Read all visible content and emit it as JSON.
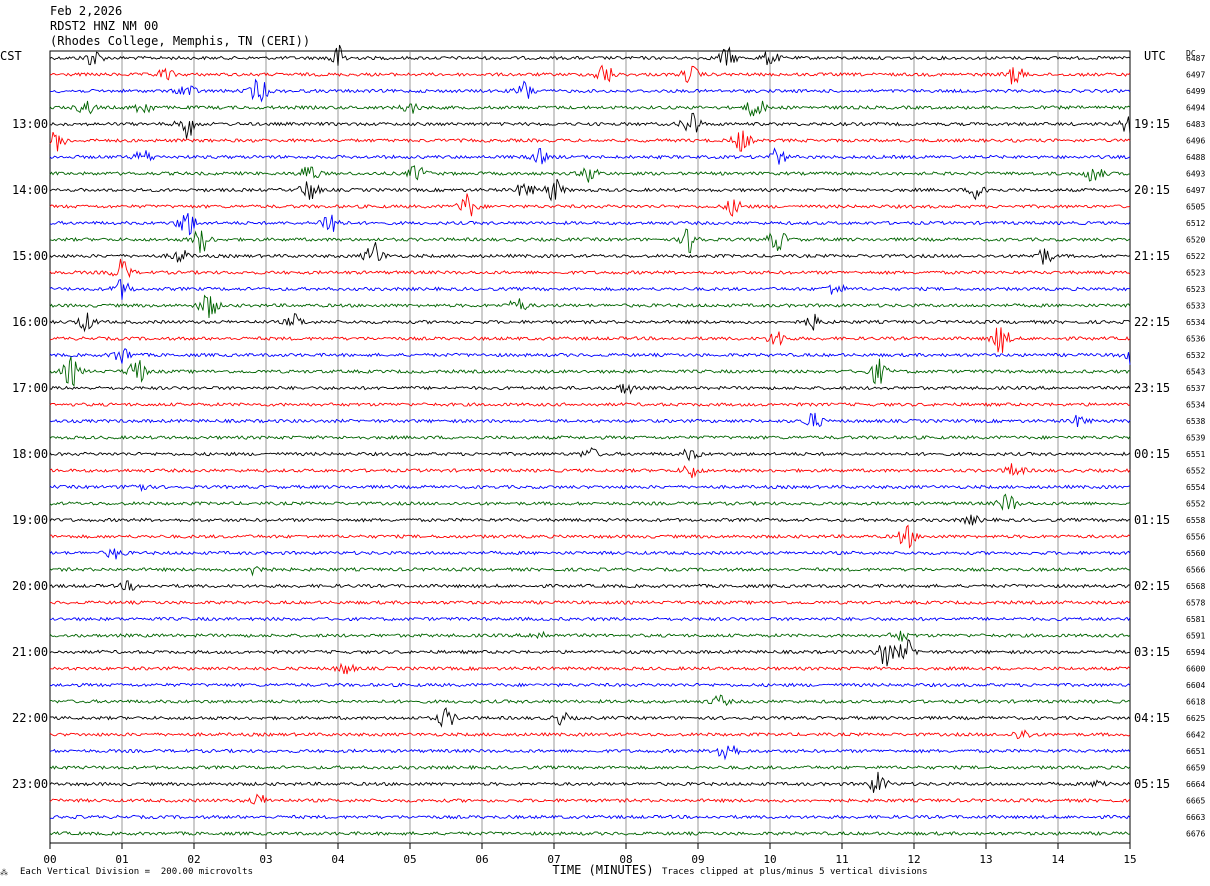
{
  "header": {
    "date": "Feb 2,2026",
    "station": "RDST2 HNZ NM 00",
    "location": "(Rhodes College, Memphis, TN (CERI))"
  },
  "left_tz": "CST",
  "right_tz": "UTC",
  "dc_label": "DC",
  "footer": {
    "division_note": "Each Vertical Division =  200.00 microvolts",
    "clip_note": "Traces clipped at plus/minus 5 vertical divisions",
    "corner_mark": "⁂"
  },
  "colors": {
    "cycle": [
      "#000000",
      "#ff0000",
      "#0000ff",
      "#006400"
    ],
    "grid": "#808080"
  },
  "chart_data": {
    "type": "line",
    "title": "",
    "xlabel": "TIME (MINUTES)",
    "ylabel": "",
    "xlim": [
      0,
      15
    ],
    "x_ticks": [
      "00",
      "01",
      "02",
      "03",
      "04",
      "05",
      "06",
      "07",
      "08",
      "09",
      "10",
      "11",
      "12",
      "13",
      "14",
      "15"
    ],
    "left_hour_labels": [
      "13:00",
      "14:00",
      "15:00",
      "16:00",
      "17:00",
      "18:00",
      "19:00",
      "20:00",
      "21:00",
      "22:00",
      "23:00"
    ],
    "right_hour_labels": [
      "19:15",
      "20:15",
      "21:15",
      "22:15",
      "23:15",
      "00:15",
      "01:15",
      "02:15",
      "03:15",
      "04:15",
      "05:15"
    ],
    "dc_offsets": [
      6487,
      6497,
      6499,
      6494,
      6483,
      6496,
      6488,
      6493,
      6497,
      6505,
      6512,
      6520,
      6522,
      6523,
      6523,
      6533,
      6534,
      6536,
      6532,
      6543,
      6537,
      6534,
      6538,
      6539,
      6551,
      6552,
      6554,
      6552,
      6558,
      6556,
      6560,
      6566,
      6568,
      6578,
      6581,
      6591,
      6594,
      6600,
      6604,
      6618,
      6625,
      6642,
      6651,
      6659,
      6664,
      6665,
      6663,
      6676
    ],
    "trace_count": 48,
    "events": [
      {
        "trace": 0,
        "minute": 0.6,
        "amp": 0.6
      },
      {
        "trace": 0,
        "minute": 4.0,
        "amp": 0.9
      },
      {
        "trace": 0,
        "minute": 9.4,
        "amp": 0.7
      },
      {
        "trace": 0,
        "minute": 10.0,
        "amp": 0.5
      },
      {
        "trace": 1,
        "minute": 1.6,
        "amp": 0.4
      },
      {
        "trace": 1,
        "minute": 7.7,
        "amp": 0.8
      },
      {
        "trace": 1,
        "minute": 8.9,
        "amp": 0.6
      },
      {
        "trace": 1,
        "minute": 13.4,
        "amp": 0.7
      },
      {
        "trace": 2,
        "minute": 1.9,
        "amp": 0.5
      },
      {
        "trace": 2,
        "minute": 2.9,
        "amp": 0.9
      },
      {
        "trace": 2,
        "minute": 6.6,
        "amp": 0.7
      },
      {
        "trace": 3,
        "minute": 0.5,
        "amp": 0.5
      },
      {
        "trace": 3,
        "minute": 1.3,
        "amp": 0.5
      },
      {
        "trace": 3,
        "minute": 5.0,
        "amp": 0.4
      },
      {
        "trace": 3,
        "minute": 9.8,
        "amp": 0.8
      },
      {
        "trace": 4,
        "minute": 1.9,
        "amp": 1.0
      },
      {
        "trace": 4,
        "minute": 8.9,
        "amp": 1.0
      },
      {
        "trace": 4,
        "minute": 15.0,
        "amp": 0.8
      },
      {
        "trace": 5,
        "minute": 0.1,
        "amp": 0.7
      },
      {
        "trace": 5,
        "minute": 9.6,
        "amp": 0.8
      },
      {
        "trace": 6,
        "minute": 1.3,
        "amp": 0.5
      },
      {
        "trace": 6,
        "minute": 6.8,
        "amp": 0.5
      },
      {
        "trace": 6,
        "minute": 10.1,
        "amp": 0.6
      },
      {
        "trace": 7,
        "minute": 3.6,
        "amp": 0.7
      },
      {
        "trace": 7,
        "minute": 5.1,
        "amp": 0.6
      },
      {
        "trace": 7,
        "minute": 7.5,
        "amp": 0.6
      },
      {
        "trace": 7,
        "minute": 14.5,
        "amp": 0.7
      },
      {
        "trace": 8,
        "minute": 3.6,
        "amp": 0.8
      },
      {
        "trace": 8,
        "minute": 6.6,
        "amp": 0.6
      },
      {
        "trace": 8,
        "minute": 7.0,
        "amp": 0.8
      },
      {
        "trace": 8,
        "minute": 12.9,
        "amp": 0.7
      },
      {
        "trace": 9,
        "minute": 5.8,
        "amp": 0.9
      },
      {
        "trace": 9,
        "minute": 9.5,
        "amp": 0.6
      },
      {
        "trace": 10,
        "minute": 1.9,
        "amp": 1.0
      },
      {
        "trace": 10,
        "minute": 3.9,
        "amp": 1.0
      },
      {
        "trace": 11,
        "minute": 2.1,
        "amp": 0.9
      },
      {
        "trace": 11,
        "minute": 8.9,
        "amp": 1.0
      },
      {
        "trace": 11,
        "minute": 10.1,
        "amp": 0.8
      },
      {
        "trace": 12,
        "minute": 1.8,
        "amp": 0.5
      },
      {
        "trace": 12,
        "minute": 4.5,
        "amp": 1.0
      },
      {
        "trace": 12,
        "minute": 13.8,
        "amp": 0.6
      },
      {
        "trace": 13,
        "minute": 1.0,
        "amp": 0.9
      },
      {
        "trace": 14,
        "minute": 1.0,
        "amp": 0.7
      },
      {
        "trace": 14,
        "minute": 10.9,
        "amp": 0.5
      },
      {
        "trace": 15,
        "minute": 2.2,
        "amp": 1.0
      },
      {
        "trace": 15,
        "minute": 6.5,
        "amp": 0.5
      },
      {
        "trace": 16,
        "minute": 0.5,
        "amp": 0.6
      },
      {
        "trace": 16,
        "minute": 3.4,
        "amp": 0.5
      },
      {
        "trace": 16,
        "minute": 10.6,
        "amp": 0.5
      },
      {
        "trace": 17,
        "minute": 10.1,
        "amp": 0.6
      },
      {
        "trace": 17,
        "minute": 13.2,
        "amp": 1.0
      },
      {
        "trace": 18,
        "minute": 1.0,
        "amp": 0.6
      },
      {
        "trace": 18,
        "minute": 15.0,
        "amp": 0.6
      },
      {
        "trace": 19,
        "minute": 0.3,
        "amp": 1.0
      },
      {
        "trace": 19,
        "minute": 1.2,
        "amp": 1.0
      },
      {
        "trace": 19,
        "minute": 11.5,
        "amp": 0.9
      },
      {
        "trace": 20,
        "minute": 8.0,
        "amp": 0.4
      },
      {
        "trace": 22,
        "minute": 10.6,
        "amp": 0.6
      },
      {
        "trace": 22,
        "minute": 14.3,
        "amp": 0.4
      },
      {
        "trace": 24,
        "minute": 7.5,
        "amp": 0.4
      },
      {
        "trace": 24,
        "minute": 8.9,
        "amp": 0.4
      },
      {
        "trace": 25,
        "minute": 8.9,
        "amp": 0.5
      },
      {
        "trace": 25,
        "minute": 13.4,
        "amp": 0.5
      },
      {
        "trace": 26,
        "minute": 1.2,
        "amp": 0.4
      },
      {
        "trace": 27,
        "minute": 13.3,
        "amp": 0.7
      },
      {
        "trace": 28,
        "minute": 12.8,
        "amp": 0.3
      },
      {
        "trace": 29,
        "minute": 11.9,
        "amp": 0.8
      },
      {
        "trace": 30,
        "minute": 0.9,
        "amp": 0.4
      },
      {
        "trace": 31,
        "minute": 2.9,
        "amp": 0.6
      },
      {
        "trace": 32,
        "minute": 1.1,
        "amp": 0.3
      },
      {
        "trace": 35,
        "minute": 6.8,
        "amp": 0.3
      },
      {
        "trace": 35,
        "minute": 11.8,
        "amp": 0.4
      },
      {
        "trace": 36,
        "minute": 11.6,
        "amp": 1.0
      },
      {
        "trace": 36,
        "minute": 11.9,
        "amp": 0.8
      },
      {
        "trace": 37,
        "minute": 4.1,
        "amp": 0.4
      },
      {
        "trace": 39,
        "minute": 9.3,
        "amp": 0.4
      },
      {
        "trace": 40,
        "minute": 5.5,
        "amp": 0.7
      },
      {
        "trace": 40,
        "minute": 7.1,
        "amp": 0.4
      },
      {
        "trace": 41,
        "minute": 13.5,
        "amp": 0.4
      },
      {
        "trace": 42,
        "minute": 9.4,
        "amp": 1.0
      },
      {
        "trace": 44,
        "minute": 11.5,
        "amp": 0.8
      },
      {
        "trace": 44,
        "minute": 14.6,
        "amp": 0.3
      },
      {
        "trace": 45,
        "minute": 2.9,
        "amp": 0.4
      }
    ]
  }
}
